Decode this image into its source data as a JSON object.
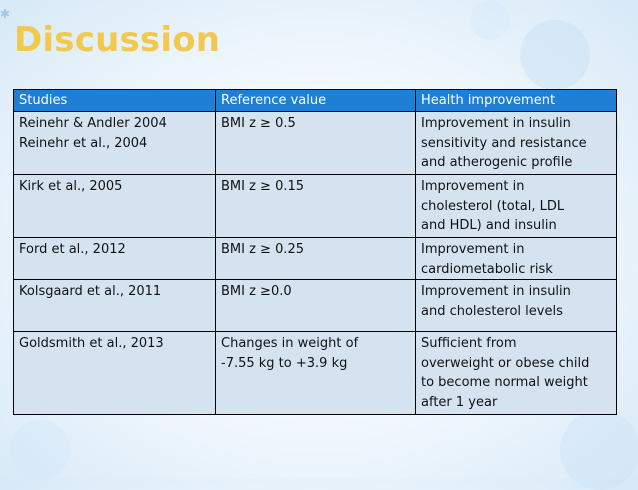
{
  "slide": {
    "title": "Discussion",
    "accent_color": "#f2c94c",
    "header_color": "#1d7fd6",
    "row_color": "#d5e3f1",
    "decoration_icon": "asterisk-icon"
  },
  "table": {
    "headers": [
      "Studies",
      "Reference value",
      "Health improvement"
    ],
    "rows": [
      {
        "studies": [
          "Reinehr & Andler 2004",
          "Reinehr et al., 2004"
        ],
        "reference": [
          "BMI z ≥ 0.5"
        ],
        "improvement": [
          "Improvement in insulin",
          "sensitivity and resistance",
          "and atherogenic profile"
        ]
      },
      {
        "studies": [
          "Kirk et al., 2005"
        ],
        "reference": [
          "BMI z ≥ 0.15"
        ],
        "improvement": [
          "Improvement in",
          "cholesterol (total, LDL",
          "and HDL) and insulin"
        ]
      },
      {
        "studies": [
          "Ford et al., 2012"
        ],
        "reference": [
          "BMI z ≥ 0.25"
        ],
        "improvement": [
          "Improvement in",
          "cardiometabolic risk"
        ]
      },
      {
        "studies": [
          "Kolsgaard et al., 2011"
        ],
        "reference": [
          "BMI z ≥0.0"
        ],
        "improvement": [
          "Improvement in insulin",
          "and cholesterol levels"
        ]
      },
      {
        "studies": [
          "Goldsmith et al., 2013"
        ],
        "reference": [
          "Changes in weight of",
          "-7.55 kg to +3.9 kg"
        ],
        "improvement": [
          "Sufficient from",
          "overweight or obese child",
          "to become normal weight",
          "after 1 year"
        ]
      }
    ]
  }
}
